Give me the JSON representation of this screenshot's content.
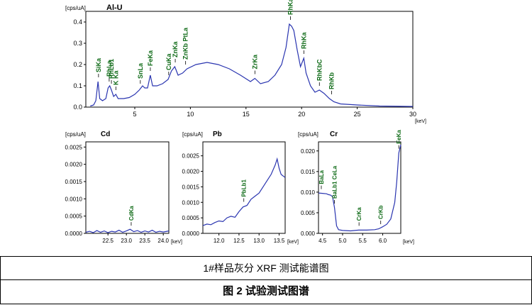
{
  "caption_1": "1#样品灰分 XRF 测试能谱图",
  "caption_2": "图 2 试验测试图谱",
  "line_color": "#2a35b0",
  "label_color": "#0e6a16",
  "chart_data": [
    {
      "id": "main",
      "type": "line",
      "title": "Al-U",
      "ylabel": "[cps/uA]",
      "xlabel": "[keV]",
      "xlim": [
        0.6,
        30
      ],
      "ylim": [
        0,
        0.45
      ],
      "xticks": [
        5,
        10,
        15,
        20,
        25,
        30
      ],
      "yticks": [
        0.0,
        0.1,
        0.2,
        0.3,
        0.4
      ],
      "ytick_labels": [
        "0.0",
        "0.1",
        "0.2",
        "0.3",
        "0.4"
      ],
      "series": [
        {
          "points": [
            [
              1.0,
              0.005
            ],
            [
              1.3,
              0.01
            ],
            [
              1.5,
              0.03
            ],
            [
              1.7,
              0.12
            ],
            [
              1.85,
              0.04
            ],
            [
              2.1,
              0.03
            ],
            [
              2.4,
              0.04
            ],
            [
              2.6,
              0.09
            ],
            [
              2.75,
              0.1
            ],
            [
              2.9,
              0.08
            ],
            [
              3.1,
              0.05
            ],
            [
              3.3,
              0.06
            ],
            [
              3.5,
              0.04
            ],
            [
              4.0,
              0.04
            ],
            [
              4.5,
              0.045
            ],
            [
              5.0,
              0.06
            ],
            [
              5.4,
              0.08
            ],
            [
              5.7,
              0.1
            ],
            [
              5.9,
              0.09
            ],
            [
              6.15,
              0.09
            ],
            [
              6.4,
              0.15
            ],
            [
              6.6,
              0.1
            ],
            [
              7.0,
              0.1
            ],
            [
              7.5,
              0.11
            ],
            [
              8.0,
              0.13
            ],
            [
              8.3,
              0.17
            ],
            [
              8.6,
              0.19
            ],
            [
              8.9,
              0.15
            ],
            [
              9.3,
              0.16
            ],
            [
              9.7,
              0.18
            ],
            [
              10.5,
              0.2
            ],
            [
              11.5,
              0.21
            ],
            [
              12.5,
              0.2
            ],
            [
              13.5,
              0.18
            ],
            [
              14.5,
              0.15
            ],
            [
              15.4,
              0.12
            ],
            [
              15.8,
              0.135
            ],
            [
              16.3,
              0.11
            ],
            [
              17.0,
              0.12
            ],
            [
              17.6,
              0.15
            ],
            [
              18.2,
              0.2
            ],
            [
              18.6,
              0.28
            ],
            [
              18.9,
              0.39
            ],
            [
              19.1,
              0.38
            ],
            [
              19.3,
              0.36
            ],
            [
              19.6,
              0.27
            ],
            [
              19.9,
              0.19
            ],
            [
              20.2,
              0.23
            ],
            [
              20.4,
              0.16
            ],
            [
              20.8,
              0.1
            ],
            [
              21.2,
              0.07
            ],
            [
              21.6,
              0.08
            ],
            [
              22.0,
              0.065
            ],
            [
              22.5,
              0.04
            ],
            [
              22.9,
              0.025
            ],
            [
              23.5,
              0.015
            ],
            [
              25,
              0.01
            ],
            [
              27,
              0.005
            ],
            [
              30,
              0.003
            ]
          ]
        }
      ],
      "annotations": [
        {
          "text": "SiKa",
          "x": 1.74,
          "y": 0.12
        },
        {
          "text": "RhLa",
          "x": 2.7,
          "y": 0.1
        },
        {
          "text": "RhLb1",
          "x": 2.9,
          "y": 0.09
        },
        {
          "text": "K Ka",
          "x": 3.3,
          "y": 0.06
        },
        {
          "text": "SnLa",
          "x": 5.5,
          "y": 0.09
        },
        {
          "text": "FeKa",
          "x": 6.4,
          "y": 0.15
        },
        {
          "text": "CuKa",
          "x": 8.05,
          "y": 0.13
        },
        {
          "text": "ZnKa",
          "x": 8.64,
          "y": 0.19
        },
        {
          "text": "ZnKb PtLa",
          "x": 9.57,
          "y": 0.18
        },
        {
          "text": "ZrKa",
          "x": 15.8,
          "y": 0.135
        },
        {
          "text": "RhKaC",
          "x": 19.0,
          "y": 0.39
        },
        {
          "text": "RhKa",
          "x": 20.2,
          "y": 0.23
        },
        {
          "text": "RhKbC",
          "x": 21.6,
          "y": 0.08
        },
        {
          "text": "RhKb",
          "x": 22.7,
          "y": 0.04
        }
      ]
    },
    {
      "id": "cd",
      "type": "line",
      "title": "Cd",
      "ylabel": "[cps/uA]",
      "xlabel": "[keV]",
      "xlim": [
        21.9,
        24.15
      ],
      "ylim": [
        0,
        0.00265
      ],
      "xticks": [
        22.5,
        23.0,
        23.5,
        24.0
      ],
      "xtick_labels": [
        "22.5",
        "23.0",
        "23.5",
        "24.0"
      ],
      "yticks": [
        0.0,
        0.0005,
        0.001,
        0.0015,
        0.002,
        0.0025
      ],
      "ytick_labels": [
        "0.0000",
        "0.0005",
        "0.0010",
        "0.0015",
        "0.0020",
        "0.0025"
      ],
      "series": [
        {
          "points": [
            [
              21.9,
              3e-05
            ],
            [
              22.0,
              6e-05
            ],
            [
              22.1,
              2e-05
            ],
            [
              22.2,
              8e-05
            ],
            [
              22.3,
              3e-05
            ],
            [
              22.4,
              7e-05
            ],
            [
              22.5,
              2e-05
            ],
            [
              22.6,
              6e-05
            ],
            [
              22.7,
              4e-05
            ],
            [
              22.8,
              9e-05
            ],
            [
              22.9,
              3e-05
            ],
            [
              23.0,
              7e-05
            ],
            [
              23.1,
              0.00012
            ],
            [
              23.2,
              5e-05
            ],
            [
              23.3,
              8e-05
            ],
            [
              23.4,
              3e-05
            ],
            [
              23.5,
              7e-05
            ],
            [
              23.6,
              4e-05
            ],
            [
              23.7,
              9e-05
            ],
            [
              23.8,
              3e-05
            ],
            [
              23.9,
              6e-05
            ],
            [
              24.0,
              4e-05
            ],
            [
              24.15,
              7e-05
            ]
          ]
        }
      ],
      "annotations": [
        {
          "text": "CdKa",
          "x": 23.13,
          "y": 0.0001
        }
      ]
    },
    {
      "id": "pb",
      "type": "line",
      "title": "Pb",
      "ylabel": "[cps/uA]",
      "xlabel": "[keV]",
      "xlim": [
        11.6,
        13.65
      ],
      "ylim": [
        0,
        0.00295
      ],
      "xticks": [
        12.0,
        12.5,
        13.0,
        13.5
      ],
      "xtick_labels": [
        "12.0",
        "12.5",
        "13.0",
        "13.5"
      ],
      "yticks": [
        0.0,
        0.0005,
        0.001,
        0.0015,
        0.002,
        0.0025
      ],
      "ytick_labels": [
        "0.0000",
        "0.0005",
        "0.0010",
        "0.0015",
        "0.0020",
        "0.0025"
      ],
      "series": [
        {
          "points": [
            [
              11.6,
              0.00025
            ],
            [
              11.7,
              0.0003
            ],
            [
              11.8,
              0.00028
            ],
            [
              11.9,
              0.00035
            ],
            [
              12.0,
              0.0004
            ],
            [
              12.1,
              0.00038
            ],
            [
              12.2,
              0.0005
            ],
            [
              12.3,
              0.00055
            ],
            [
              12.4,
              0.00052
            ],
            [
              12.5,
              0.0007
            ],
            [
              12.6,
              0.00085
            ],
            [
              12.7,
              0.0009
            ],
            [
              12.8,
              0.0011
            ],
            [
              12.9,
              0.0012
            ],
            [
              13.0,
              0.0013
            ],
            [
              13.1,
              0.0015
            ],
            [
              13.2,
              0.0017
            ],
            [
              13.3,
              0.0019
            ],
            [
              13.4,
              0.0022
            ],
            [
              13.45,
              0.0024
            ],
            [
              13.5,
              0.0021
            ],
            [
              13.55,
              0.0019
            ],
            [
              13.65,
              0.0018
            ]
          ]
        }
      ],
      "annotations": [
        {
          "text": "PbLb1",
          "x": 12.62,
          "y": 0.00088
        }
      ]
    },
    {
      "id": "cr",
      "type": "line",
      "title": "Cr",
      "ylabel": "[cps/uA]",
      "xlabel": "[keV]",
      "xlim": [
        4.4,
        6.45
      ],
      "ylim": [
        0,
        0.0222
      ],
      "xticks": [
        4.5,
        5.0,
        5.5,
        6.0
      ],
      "xtick_labels": [
        "4.5",
        "5.0",
        "5.5",
        "6.0"
      ],
      "yticks": [
        0.0,
        0.005,
        0.01,
        0.015,
        0.02
      ],
      "ytick_labels": [
        "0.000",
        "0.005",
        "0.010",
        "0.015",
        "0.020"
      ],
      "series": [
        {
          "points": [
            [
              4.4,
              0.0098
            ],
            [
              4.5,
              0.0097
            ],
            [
              4.6,
              0.0096
            ],
            [
              4.65,
              0.0094
            ],
            [
              4.7,
              0.0093
            ],
            [
              4.75,
              0.0089
            ],
            [
              4.8,
              0.0062
            ],
            [
              4.85,
              0.0018
            ],
            [
              4.9,
              0.0009
            ],
            [
              5.0,
              0.0007
            ],
            [
              5.2,
              0.0006
            ],
            [
              5.4,
              0.0008
            ],
            [
              5.6,
              0.0008
            ],
            [
              5.8,
              0.0009
            ],
            [
              5.9,
              0.0011
            ],
            [
              6.0,
              0.0016
            ],
            [
              6.1,
              0.0022
            ],
            [
              6.2,
              0.0035
            ],
            [
              6.3,
              0.0075
            ],
            [
              6.35,
              0.0125
            ],
            [
              6.4,
              0.0195
            ],
            [
              6.45,
              0.0215
            ]
          ]
        }
      ],
      "annotations": [
        {
          "text": "BaLa",
          "x": 4.47,
          "y": 0.0097
        },
        {
          "text": "BaLb1 CeLa",
          "x": 4.8,
          "y": 0.0062
        },
        {
          "text": "CrKa",
          "x": 5.41,
          "y": 0.0008
        },
        {
          "text": "CrKb",
          "x": 5.95,
          "y": 0.0012
        },
        {
          "text": "FeKa",
          "x": 6.4,
          "y": 0.0195
        }
      ]
    }
  ]
}
